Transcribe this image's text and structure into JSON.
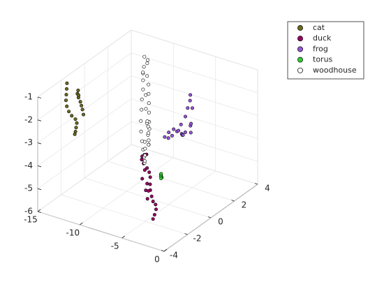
{
  "chart_data": {
    "type": "scatter3d",
    "title": "",
    "xlabel": "",
    "ylabel": "",
    "zlabel": "",
    "xlim": [
      -15,
      0
    ],
    "ylim": [
      -4,
      4
    ],
    "zlim": [
      -6,
      -1
    ],
    "x_ticks": [
      -15,
      -10,
      -5,
      0
    ],
    "x_tick_labels": [
      "-15",
      "-10",
      "-5",
      "0"
    ],
    "y_ticks": [
      -4,
      -2,
      0,
      2,
      4
    ],
    "y_tick_labels": [
      "-4",
      "-2",
      "0",
      "2",
      "4"
    ],
    "z_ticks": [
      -6,
      -5,
      -4,
      -3,
      -2,
      -1
    ],
    "z_tick_labels": [
      "-6",
      "-5",
      "-4",
      "-3",
      "-2",
      "-1"
    ],
    "grid": true,
    "legend_position": "top-right",
    "series": [
      {
        "name": "cat",
        "color": "#6b6b1f",
        "points": [
          [
            -14.3,
            -2.0,
            -1.05
          ],
          [
            -14.2,
            -2.1,
            -1.25
          ],
          [
            -14.1,
            -2.2,
            -1.45
          ],
          [
            -14.0,
            -2.3,
            -1.65
          ],
          [
            -13.9,
            -2.3,
            -1.9
          ],
          [
            -13.8,
            -2.2,
            -2.15
          ],
          [
            -13.6,
            -2.1,
            -2.35
          ],
          [
            -13.3,
            -2.0,
            -2.5
          ],
          [
            -13.0,
            -2.1,
            -2.6
          ],
          [
            -12.8,
            -2.3,
            -2.7
          ],
          [
            -12.6,
            -2.5,
            -2.78
          ],
          [
            -12.4,
            -2.7,
            -2.8
          ],
          [
            -12.9,
            -1.6,
            -2.4
          ],
          [
            -13.3,
            -1.4,
            -2.3
          ],
          [
            -13.7,
            -1.2,
            -2.25
          ],
          [
            -14.1,
            -1.0,
            -2.2
          ],
          [
            -14.6,
            -0.8,
            -2.15
          ],
          [
            -15.0,
            -0.6,
            -2.1
          ],
          [
            -15.2,
            -0.4,
            -2.05
          ],
          [
            -15.0,
            -0.5,
            -2.2
          ]
        ]
      },
      {
        "name": "duck",
        "color": "#990066",
        "points": [
          [
            -6.8,
            -0.6,
            -3.8
          ],
          [
            -7.2,
            -0.5,
            -3.9
          ],
          [
            -7.6,
            -0.4,
            -4.05
          ],
          [
            -7.8,
            -0.3,
            -4.25
          ],
          [
            -7.7,
            -0.2,
            -4.45
          ],
          [
            -7.3,
            -0.2,
            -4.6
          ],
          [
            -6.9,
            -0.3,
            -4.7
          ],
          [
            -6.5,
            -0.5,
            -4.8
          ],
          [
            -6.1,
            -0.8,
            -4.95
          ],
          [
            -5.8,
            -1.0,
            -5.1
          ],
          [
            -5.5,
            -1.1,
            -5.3
          ],
          [
            -5.2,
            -1.2,
            -5.45
          ],
          [
            -4.9,
            -1.2,
            -5.55
          ],
          [
            -4.7,
            -1.3,
            -5.7
          ],
          [
            -4.6,
            -1.5,
            -5.85
          ],
          [
            -4.5,
            -1.7,
            -5.95
          ],
          [
            -5.3,
            -1.6,
            -5.2
          ],
          [
            -5.6,
            -1.3,
            -5.0
          ],
          [
            -5.9,
            -1.2,
            -4.75
          ],
          [
            -5.5,
            -1.6,
            -4.85
          ],
          [
            -6.2,
            -1.4,
            -4.5
          ],
          [
            -6.6,
            -0.9,
            -4.35
          ]
        ]
      },
      {
        "name": "frog",
        "color": "#9955dd",
        "points": [
          [
            -1.6,
            -0.6,
            -0.6
          ],
          [
            -1.5,
            -0.7,
            -0.8
          ],
          [
            -1.5,
            -0.9,
            -1.05
          ],
          [
            -1.5,
            -1.1,
            -1.35
          ],
          [
            -1.6,
            -1.4,
            -1.6
          ],
          [
            -1.8,
            -1.6,
            -1.85
          ],
          [
            -2.1,
            -1.8,
            -2.0
          ],
          [
            -2.4,
            -1.9,
            -2.1
          ],
          [
            -2.7,
            -2.0,
            -2.05
          ],
          [
            -2.5,
            -1.8,
            -1.9
          ],
          [
            -2.2,
            -1.6,
            -1.8
          ],
          [
            -1.9,
            -1.4,
            -1.9
          ],
          [
            -1.8,
            -1.2,
            -2.1
          ],
          [
            -2.0,
            -1.0,
            -2.25
          ],
          [
            -2.2,
            -0.8,
            -2.35
          ],
          [
            -2.2,
            -0.6,
            -2.3
          ],
          [
            -2.0,
            -0.3,
            -2.1
          ],
          [
            -1.8,
            -0.4,
            -1.95
          ],
          [
            -2.1,
            -0.2,
            -2.45
          ],
          [
            -1.5,
            -0.5,
            -1.2
          ]
        ]
      },
      {
        "name": "torus",
        "color": "#33cc33",
        "points": [
          [
            -1.2,
            -3.4,
            -3.0
          ],
          [
            -1.1,
            -3.45,
            -3.05
          ],
          [
            -1.0,
            -3.5,
            -3.08
          ],
          [
            -0.9,
            -3.55,
            -3.04
          ],
          [
            -1.3,
            -3.35,
            -3.1
          ],
          [
            -1.05,
            -3.5,
            -3.12
          ],
          [
            -1.15,
            -3.42,
            -2.96
          ]
        ]
      },
      {
        "name": "woodhouse",
        "color": "#ffffff",
        "points": [
          [
            -9.0,
            0.8,
            -0.3
          ],
          [
            -8.6,
            0.8,
            -0.4
          ],
          [
            -8.8,
            0.9,
            -0.6
          ],
          [
            -9.2,
            0.9,
            -0.8
          ],
          [
            -9.3,
            0.9,
            -1.1
          ],
          [
            -9.3,
            0.9,
            -1.4
          ],
          [
            -9.3,
            0.9,
            -1.8
          ],
          [
            -9.3,
            0.8,
            -2.2
          ],
          [
            -9.2,
            0.7,
            -2.6
          ],
          [
            -9.0,
            0.5,
            -3.0
          ],
          [
            -8.7,
            0.3,
            -3.35
          ],
          [
            -8.3,
            0.1,
            -3.65
          ],
          [
            -7.9,
            -0.1,
            -3.9
          ],
          [
            -7.5,
            -0.3,
            -4.1
          ],
          [
            -7.2,
            -0.5,
            -4.2
          ],
          [
            -6.9,
            -0.7,
            -4.15
          ],
          [
            -6.6,
            -0.9,
            -3.95
          ],
          [
            -6.3,
            -1.1,
            -3.6
          ],
          [
            -6.0,
            -1.3,
            -3.2
          ],
          [
            -5.9,
            -1.4,
            -2.85
          ],
          [
            -8.4,
            0.6,
            -1.0
          ],
          [
            -8.1,
            0.5,
            -1.3
          ],
          [
            -7.8,
            0.3,
            -1.6
          ],
          [
            -7.5,
            0.1,
            -1.9
          ],
          [
            -7.2,
            -0.1,
            -2.2
          ],
          [
            -6.9,
            -0.3,
            -2.5
          ],
          [
            -6.6,
            -0.5,
            -2.7
          ],
          [
            -8.7,
            0.7,
            -1.9
          ],
          [
            -8.4,
            0.5,
            -2.4
          ],
          [
            -8.0,
            0.3,
            -2.9
          ],
          [
            -7.6,
            0.1,
            -3.3
          ],
          [
            -7.1,
            -0.2,
            -3.55
          ],
          [
            -6.7,
            -0.5,
            -3.4
          ],
          [
            -7.0,
            -0.3,
            -3.0
          ],
          [
            -7.4,
            -0.1,
            -2.6
          ],
          [
            -6.4,
            -0.7,
            -3.1
          ],
          [
            -6.2,
            -0.9,
            -2.4
          ],
          [
            -8.9,
            0.6,
            -0.9
          ]
        ]
      }
    ]
  }
}
